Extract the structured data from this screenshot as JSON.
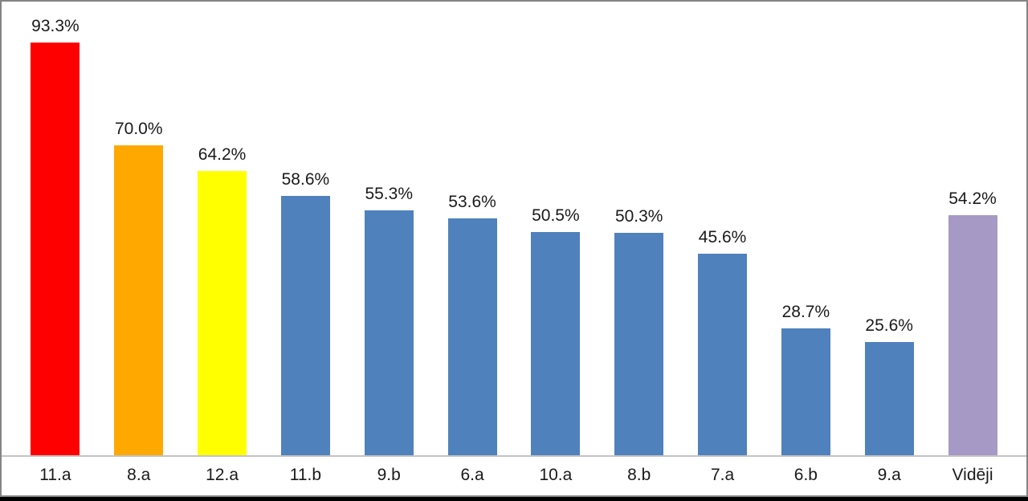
{
  "chart_data": {
    "type": "bar",
    "categories": [
      "11.a",
      "8.a",
      "12.a",
      "11.b",
      "9.b",
      "6.a",
      "10.a",
      "8.b",
      "7.a",
      "6.b",
      "9.a",
      "Vidēji"
    ],
    "values": [
      93.3,
      70.0,
      64.2,
      58.6,
      55.3,
      53.6,
      50.5,
      50.3,
      45.6,
      28.7,
      25.6,
      54.2
    ],
    "labels": [
      "93.3%",
      "70.0%",
      "64.2%",
      "58.6%",
      "55.3%",
      "53.6%",
      "50.5%",
      "50.3%",
      "45.6%",
      "28.7%",
      "25.6%",
      "54.2%"
    ],
    "bar_colors": [
      "#FF0000",
      "#FFA900",
      "#FFFF00",
      "#4F81BD",
      "#4F81BD",
      "#4F81BD",
      "#4F81BD",
      "#4F81BD",
      "#4F81BD",
      "#4F81BD",
      "#4F81BD",
      "#A699C5"
    ],
    "title": "",
    "xlabel": "",
    "ylabel": "",
    "ylim": [
      0,
      100
    ],
    "grid": false,
    "legend": false,
    "data_label_position": "above-bar"
  },
  "colors": {
    "background": "#FFFFFF",
    "panel_border": "#848484",
    "axis_line": "#C3C3C3",
    "bottom_strip": "#000000",
    "label_text": "#1A1A1A"
  }
}
